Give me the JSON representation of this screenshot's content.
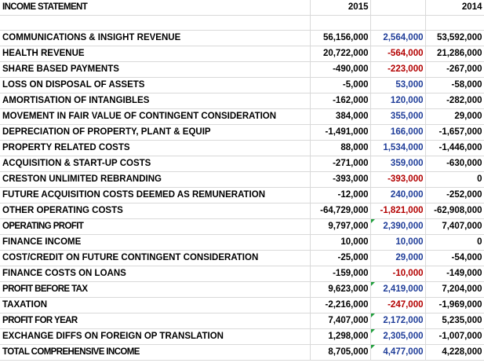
{
  "header": {
    "title": "INCOME STATEMENT",
    "year_current": "2015",
    "change": "",
    "year_prior": "2014"
  },
  "rows": [
    {
      "label": "",
      "y1": "",
      "chg": "",
      "y2": ""
    },
    {
      "label": "COMMUNICATIONS & INSIGHT REVENUE",
      "y1": "56,156,000",
      "chg": "2,564,000",
      "y2": "53,592,000"
    },
    {
      "label": "HEALTH REVENUE",
      "y1": "20,722,000",
      "chg": "-564,000",
      "y2": "21,286,000"
    },
    {
      "label": "SHARE BASED PAYMENTS",
      "y1": "-490,000",
      "chg": "-223,000",
      "y2": "-267,000"
    },
    {
      "label": "LOSS ON DISPOSAL OF ASSETS",
      "y1": "-5,000",
      "chg": "53,000",
      "y2": "-58,000"
    },
    {
      "label": "AMORTISATION OF INTANGIBLES",
      "y1": "-162,000",
      "chg": "120,000",
      "y2": "-282,000"
    },
    {
      "label": "MOVEMENT IN FAIR VALUE OF CONTINGENT CONSIDERATION",
      "y1": "384,000",
      "chg": "355,000",
      "y2": "29,000"
    },
    {
      "label": "DEPRECIATION OF PROPERTY, PLANT & EQUIP",
      "y1": "-1,491,000",
      "chg": "166,000",
      "y2": "-1,657,000"
    },
    {
      "label": "PROPERTY RELATED COSTS",
      "y1": "88,000",
      "chg": "1,534,000",
      "y2": "-1,446,000"
    },
    {
      "label": "ACQUISITION & START-UP COSTS",
      "y1": "-271,000",
      "chg": "359,000",
      "y2": "-630,000"
    },
    {
      "label": "CRESTON UNLIMITED REBRANDING",
      "y1": "-393,000",
      "chg": "-393,000",
      "y2": "0"
    },
    {
      "label": "FUTURE ACQUISITION COSTS DEEMED AS REMUNERATION",
      "y1": "-12,000",
      "chg": "240,000",
      "y2": "-252,000"
    },
    {
      "label": "OTHER OPERATING COSTS",
      "y1": "-64,729,000",
      "chg": "-1,821,000",
      "y2": "-62,908,000"
    },
    {
      "label": "OPERATING PROFIT",
      "y1": "9,797,000",
      "chg": "2,390,000",
      "y2": "7,407,000"
    },
    {
      "label": "FINANCE INCOME",
      "y1": "10,000",
      "chg": "10,000",
      "y2": "0"
    },
    {
      "label": "COST/CREDIT ON FUTURE CONTINGENT CONSIDERATION",
      "y1": "-25,000",
      "chg": "29,000",
      "y2": "-54,000"
    },
    {
      "label": "FINANCE COSTS ON LOANS",
      "y1": "-159,000",
      "chg": "-10,000",
      "y2": "-149,000"
    },
    {
      "label": "PROFIT BEFORE TAX",
      "y1": "9,623,000",
      "chg": "2,419,000",
      "y2": "7,204,000"
    },
    {
      "label": "TAXATION",
      "y1": "-2,216,000",
      "chg": "-247,000",
      "y2": "-1,969,000"
    },
    {
      "label": "PROFIT FOR YEAR",
      "y1": "7,407,000",
      "chg": "2,172,000",
      "y2": "5,235,000"
    },
    {
      "label": "EXCHANGE DIFFS ON FOREIGN OP TRANSLATION",
      "y1": "1,298,000",
      "chg": "2,305,000",
      "y2": "-1,007,000"
    },
    {
      "label": "TOTAL COMPREHENSIVE INCOME",
      "y1": "8,705,000",
      "chg": "4,477,000",
      "y2": "4,228,000"
    }
  ],
  "colors": {
    "positive_change": "#1f3d99",
    "negative_change": "#b30000",
    "error_flag": "#1e9e3a",
    "gridline": "#d9d9d9"
  }
}
